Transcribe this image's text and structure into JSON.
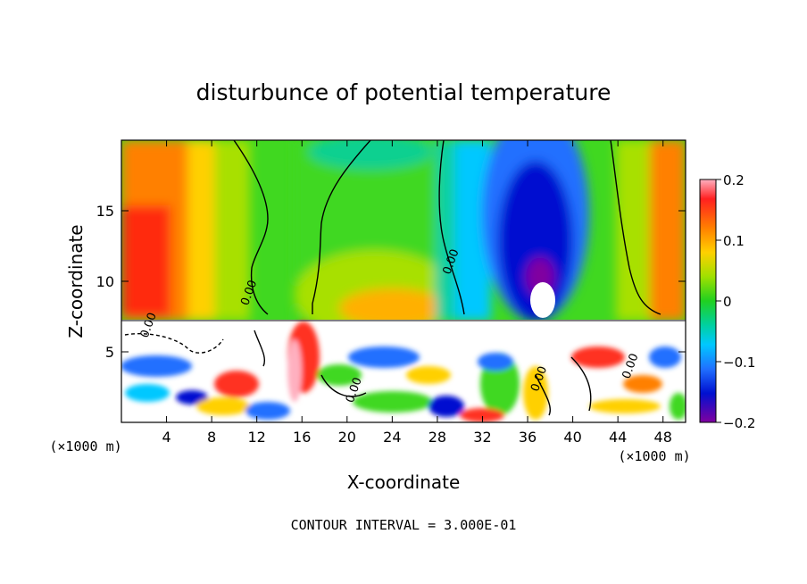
{
  "chart_data": {
    "type": "heatmap",
    "title": "disturbunce of potential temperature",
    "xlabel": "X-coordinate",
    "ylabel": "Z-coordinate",
    "x_unit_label": "(×1000 m)",
    "x_ticks": [
      4,
      8,
      12,
      16,
      20,
      24,
      28,
      32,
      36,
      40,
      44,
      48
    ],
    "y_ticks": [
      5,
      10,
      15
    ],
    "xlim": [
      0,
      50
    ],
    "ylim": [
      0,
      20
    ],
    "colorbar": {
      "ticks": [
        "0.2",
        "0.1",
        "0",
        "−0.1",
        "−0.2"
      ],
      "range": [
        -0.2,
        0.2
      ]
    },
    "contour_labels": [
      {
        "text": "0.00",
        "x": 11.6,
        "y": 9.1
      },
      {
        "text": "0.00",
        "x": 29.5,
        "y": 11.3
      },
      {
        "text": "0.00",
        "x": 2.7,
        "y": 6.8
      },
      {
        "text": "0.00",
        "x": 20.9,
        "y": 2.2
      },
      {
        "text": "0.00",
        "x": 37.3,
        "y": 3.0
      },
      {
        "text": "0.00",
        "x": 45.4,
        "y": 3.9
      }
    ],
    "footnote": "CONTOUR INTERVAL = 3.000E-01"
  }
}
